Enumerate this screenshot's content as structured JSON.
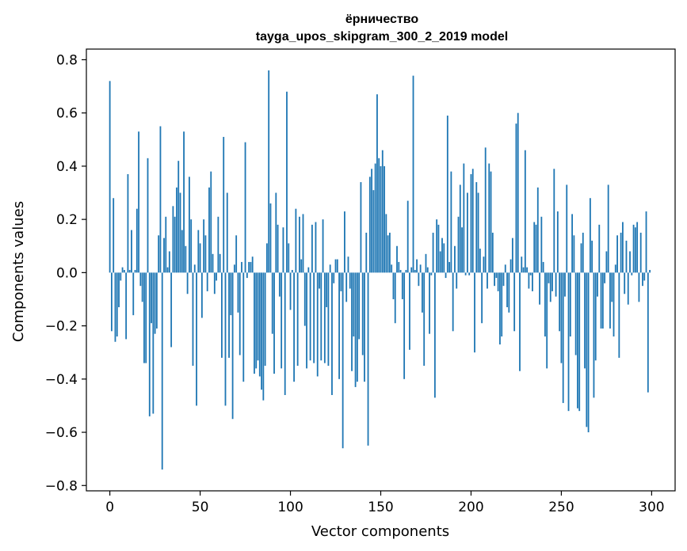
{
  "chart_data": {
    "type": "bar",
    "title": "ёрничество",
    "subtitle": "tayga_upos_skipgram_300_2_2019 model",
    "xlabel": "Vector components",
    "ylabel": "Components values",
    "xlim": [
      -13,
      313
    ],
    "ylim": [
      -0.82,
      0.84
    ],
    "xticks": [
      0,
      50,
      100,
      150,
      200,
      250,
      300
    ],
    "xtick_labels": [
      "0",
      "50",
      "100",
      "150",
      "200",
      "250",
      "300"
    ],
    "yticks": [
      -0.8,
      -0.6,
      -0.4,
      -0.2,
      0.0,
      0.2,
      0.4,
      0.6,
      0.8
    ],
    "ytick_labels": [
      "−0.8",
      "−0.6",
      "−0.4",
      "−0.2",
      "0.0",
      "0.2",
      "0.4",
      "0.6",
      "0.8"
    ],
    "bar_color": "#1f77b4",
    "grid": false,
    "x_start": 0,
    "values": [
      0.72,
      -0.22,
      0.28,
      -0.26,
      -0.24,
      -0.13,
      -0.03,
      0.02,
      0.01,
      -0.25,
      0.37,
      0.01,
      0.16,
      -0.16,
      0.01,
      0.24,
      0.53,
      -0.05,
      -0.11,
      -0.34,
      -0.34,
      0.43,
      -0.54,
      -0.19,
      -0.53,
      -0.23,
      -0.21,
      0.14,
      0.55,
      -0.74,
      0.13,
      0.21,
      0.02,
      0.08,
      -0.28,
      0.25,
      0.21,
      0.32,
      0.42,
      0.3,
      0.16,
      0.53,
      0.1,
      -0.08,
      0.36,
      0.2,
      -0.35,
      0.03,
      -0.5,
      0.16,
      0.11,
      -0.17,
      0.2,
      0.14,
      -0.07,
      0.32,
      0.38,
      0.07,
      -0.08,
      -0.03,
      0.21,
      0.07,
      -0.32,
      0.51,
      -0.5,
      0.3,
      -0.32,
      -0.16,
      -0.55,
      0.03,
      0.14,
      -0.15,
      -0.31,
      0.04,
      -0.41,
      0.49,
      -0.02,
      0.04,
      0.04,
      0.06,
      -0.38,
      -0.36,
      -0.33,
      -0.39,
      -0.44,
      -0.48,
      -0.35,
      0.11,
      0.76,
      0.26,
      -0.23,
      -0.38,
      0.3,
      0.18,
      -0.09,
      -0.36,
      0.17,
      -0.46,
      0.68,
      0.11,
      -0.14,
      0.01,
      -0.41,
      0.24,
      -0.35,
      0.21,
      0.05,
      0.22,
      -0.2,
      -0.36,
      0.02,
      -0.33,
      0.18,
      -0.34,
      0.19,
      -0.39,
      -0.06,
      -0.33,
      0.2,
      -0.34,
      -0.13,
      -0.35,
      0.03,
      -0.46,
      -0.04,
      0.05,
      0.05,
      -0.4,
      -0.07,
      -0.66,
      0.23,
      -0.11,
      0.06,
      -0.06,
      -0.37,
      -0.24,
      -0.43,
      -0.41,
      -0.25,
      0.34,
      -0.31,
      -0.41,
      0.15,
      -0.65,
      0.36,
      0.39,
      0.31,
      0.41,
      0.67,
      0.43,
      0.4,
      0.46,
      0.4,
      0.22,
      0.14,
      0.15,
      0.03,
      -0.1,
      -0.19,
      0.1,
      0.04,
      0.01,
      -0.1,
      -0.4,
      0.01,
      0.27,
      -0.29,
      0.02,
      0.74,
      0.01,
      0.05,
      -0.05,
      0.03,
      -0.15,
      -0.35,
      0.07,
      0.02,
      -0.23,
      -0.01,
      0.15,
      -0.47,
      0.2,
      0.18,
      0.08,
      0.13,
      0.11,
      -0.02,
      0.59,
      0.04,
      0.38,
      -0.22,
      0.1,
      -0.06,
      0.21,
      0.33,
      0.17,
      0.41,
      -0.01,
      0.3,
      -0.01,
      0.37,
      0.39,
      -0.3,
      0.34,
      0.3,
      0.09,
      -0.19,
      0.06,
      0.47,
      -0.06,
      0.41,
      0.38,
      0.15,
      -0.05,
      -0.02,
      -0.07,
      -0.27,
      -0.24,
      -0.05,
      0.03,
      -0.13,
      -0.15,
      0.05,
      0.13,
      -0.22,
      0.56,
      0.6,
      -0.37,
      0.06,
      0.02,
      0.46,
      0.02,
      -0.06,
      -0.01,
      -0.07,
      0.19,
      0.18,
      0.32,
      -0.12,
      0.21,
      0.04,
      -0.24,
      -0.36,
      -0.04,
      -0.11,
      -0.07,
      0.39,
      -0.09,
      0.23,
      -0.22,
      -0.34,
      -0.49,
      -0.09,
      0.33,
      -0.52,
      -0.24,
      0.22,
      0.14,
      -0.31,
      -0.51,
      -0.52,
      0.11,
      0.15,
      -0.36,
      -0.58,
      -0.6,
      0.28,
      0.12,
      -0.47,
      -0.33,
      -0.09,
      0.18,
      -0.21,
      -0.21,
      -0.04,
      0.08,
      0.33,
      -0.21,
      -0.11,
      -0.24,
      0.03,
      0.14,
      -0.32,
      0.15,
      0.19,
      -0.08,
      0.12,
      -0.12,
      0.08,
      -0.01,
      0.18,
      0.17,
      0.19,
      -0.11,
      0.15,
      -0.05,
      -0.03,
      0.23,
      -0.45,
      0.01
    ]
  }
}
